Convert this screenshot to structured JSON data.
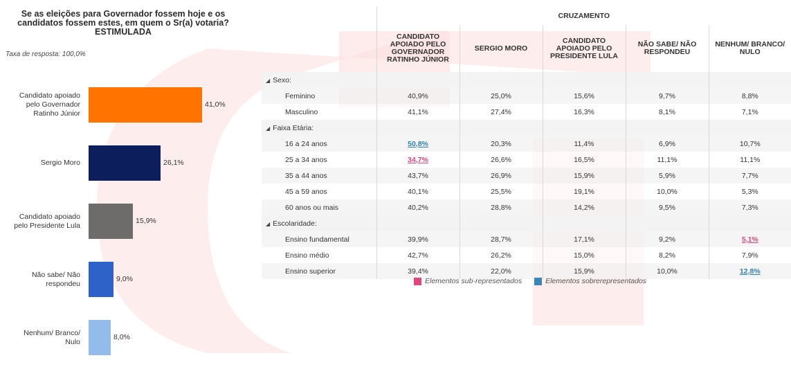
{
  "question": "Se as eleições para Governador fossem hoje e os\ncandidatos fossem estes, em quem o Sr(a) votaria?\nESTIMULADA",
  "response_rate": "Taxa de resposta: 100,0%",
  "chart_data": {
    "type": "bar",
    "orientation": "horizontal",
    "title": "Se as eleições para Governador fossem hoje e os candidatos fossem estes, em quem o Sr(a) votaria? ESTIMULADA",
    "categories": [
      "Candidato apoiado pelo Governador Ratinho Júnior",
      "Sergio Moro",
      "Candidato apoiado pelo Presidente Lula",
      "Não sabe/ Não respondeu",
      "Nenhum/ Branco/ Nulo"
    ],
    "values": [
      41.0,
      26.1,
      15.9,
      9.0,
      8.0
    ],
    "value_labels": [
      "41,0%",
      "26,1%",
      "15,9%",
      "9,0%",
      "8,0%"
    ],
    "colors": [
      "#ff7300",
      "#0c1f5c",
      "#6e6b6b",
      "#2f62c8",
      "#93bbec"
    ],
    "display_labels": [
      "Candidato apoiado\npelo Governador\nRatinho Júnior",
      "Sergio Moro",
      "Candidato apoiado\npelo Presidente Lula",
      "Não sabe/ Não\nrespondeu",
      "Nenhum/ Branco/\nNulo"
    ]
  },
  "table": {
    "title": "CRUZAMENTO",
    "columns": [
      "CANDIDATO APOIADO PELO GOVERNADOR RATINHO JÚNIOR",
      "SERGIO MORO",
      "CANDIDATO APOIADO PELO PRESIDENTE LULA",
      "NÃO SABE/ NÃO RESPONDEU",
      "NENHUM/ BRANCO/ NULO"
    ],
    "groups": [
      {
        "label": "Sexo:",
        "rows": [
          {
            "label": "Feminino",
            "values": [
              "40,9%",
              "25,0%",
              "15,6%",
              "9,7%",
              "8,8%"
            ],
            "flags": [
              "",
              "",
              "",
              "",
              ""
            ]
          },
          {
            "label": "Masculino",
            "values": [
              "41,1%",
              "27,4%",
              "16,3%",
              "8,1%",
              "7,1%"
            ],
            "flags": [
              "",
              "",
              "",
              "",
              ""
            ]
          }
        ]
      },
      {
        "label": "Faixa Etária:",
        "rows": [
          {
            "label": "16 a 24 anos",
            "values": [
              "50,8%",
              "20,3%",
              "11,4%",
              "6,9%",
              "10,7%"
            ],
            "flags": [
              "over",
              "",
              "",
              "",
              ""
            ]
          },
          {
            "label": "25 a 34 anos",
            "values": [
              "34,7%",
              "26,6%",
              "16,5%",
              "11,1%",
              "11,1%"
            ],
            "flags": [
              "under",
              "",
              "",
              "",
              ""
            ]
          },
          {
            "label": "35 a 44 anos",
            "values": [
              "43,7%",
              "26,9%",
              "15,9%",
              "5,9%",
              "7,7%"
            ],
            "flags": [
              "",
              "",
              "",
              "",
              ""
            ]
          },
          {
            "label": "45 a 59 anos",
            "values": [
              "40,1%",
              "25,5%",
              "19,1%",
              "10,0%",
              "5,3%"
            ],
            "flags": [
              "",
              "",
              "",
              "",
              ""
            ]
          },
          {
            "label": "60 anos ou mais",
            "values": [
              "40,2%",
              "28,8%",
              "14,2%",
              "9,5%",
              "7,3%"
            ],
            "flags": [
              "",
              "",
              "",
              "",
              ""
            ]
          }
        ]
      },
      {
        "label": "Escolaridade:",
        "rows": [
          {
            "label": "Ensino fundamental",
            "values": [
              "39,9%",
              "28,7%",
              "17,1%",
              "9,2%",
              "5,1%"
            ],
            "flags": [
              "",
              "",
              "",
              "",
              "under"
            ]
          },
          {
            "label": "Ensino médio",
            "values": [
              "42,7%",
              "26,2%",
              "15,0%",
              "8,2%",
              "7,9%"
            ],
            "flags": [
              "",
              "",
              "",
              "",
              ""
            ]
          },
          {
            "label": "Ensino superior",
            "values": [
              "39,4%",
              "22,0%",
              "15,9%",
              "10,0%",
              "12,8%"
            ],
            "flags": [
              "",
              "",
              "",
              "",
              "over"
            ]
          }
        ]
      }
    ]
  },
  "legend": {
    "under_label": "Elementos sub-representados",
    "over_label": "Elementos sobrerepresentados",
    "under_color": "#e0457b",
    "over_color": "#3a86b8"
  },
  "colors": {
    "watermark": "#fbe3e1"
  }
}
